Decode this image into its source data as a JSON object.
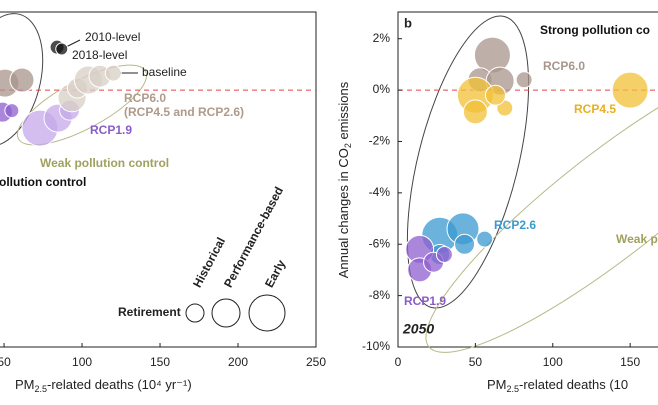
{
  "chart_data": [
    {
      "type": "scatter",
      "x_label": [
        "PM",
        "2.5",
        "-related deaths (10⁴ yr⁻¹)"
      ],
      "xlim": [
        47.4,
        250
      ],
      "ylim": [
        -10,
        3
      ],
      "xticks": [
        50,
        100,
        150,
        200,
        250
      ],
      "zero_line": true,
      "zero_line_color": "#e8414a",
      "series": [
        {
          "color": "#a8968c",
          "x": [
            50.6,
            61.5
          ],
          "values": [
            0.27,
            0.39
          ],
          "sizes": [
            14,
            12
          ]
        },
        {
          "color": "#8f5fcf",
          "x": [
            49,
            55
          ],
          "values": [
            -0.86,
            -0.8
          ],
          "sizes": [
            10,
            7
          ]
        },
        {
          "color": "#c4a8ea",
          "x": [
            73,
            84.6,
            92
          ],
          "values": [
            -1.48,
            -1.09,
            -0.78
          ],
          "sizes": [
            18,
            14,
            10
          ]
        },
        {
          "color": "#d8cfc6",
          "x": [
            93.6,
            97,
            104,
            111.5,
            120
          ],
          "values": [
            -0.3,
            0.08,
            0.39,
            0.54,
            0.66
          ],
          "sizes": [
            14,
            10,
            14,
            11,
            8
          ]
        },
        {
          "color": "#111111",
          "x": [
            84,
            87
          ],
          "values": [
            1.67,
            1.6
          ],
          "sizes": [
            7,
            6
          ]
        }
      ],
      "annotations": [
        {
          "text": "2010-level",
          "color": "#222222"
        },
        {
          "text": "2018-level",
          "color": "#222222"
        },
        {
          "text": "baseline",
          "color": "#222222"
        },
        {
          "text": "RCP6.0",
          "color": "#b09a8a"
        },
        {
          "text": "(RCP4.5 and RCP2.6)",
          "color": "#b09a8a"
        },
        {
          "text": "RCP1.9",
          "color": "#8a5cc9"
        },
        {
          "text": "Weak pollution control",
          "color": "#a0a060"
        },
        {
          "text": "ollution control",
          "color": "#111111"
        }
      ],
      "size_legend": {
        "title": "Retirement",
        "labels": [
          "Historical",
          "Performance-based",
          "Early"
        ],
        "sizes": [
          9,
          14,
          18
        ]
      }
    },
    {
      "type": "scatter",
      "panel_label": "b",
      "year_label": "2050",
      "y_label": [
        "Annual changes in CO",
        "2",
        " emissions"
      ],
      "x_label": [
        "PM",
        "2.5",
        "-related deaths (10"
      ],
      "xlim": [
        0,
        168
      ],
      "ylim": [
        -10,
        3
      ],
      "xticks": [
        0,
        50,
        100,
        150
      ],
      "yticks": [
        {
          "value": 2,
          "label": "2%"
        },
        {
          "value": 0,
          "label": "0%"
        },
        {
          "value": -2,
          "label": "-2%"
        },
        {
          "value": -4,
          "label": "-4%"
        },
        {
          "value": -6,
          "label": "-6%"
        },
        {
          "value": -8,
          "label": "-8%"
        },
        {
          "value": -10,
          "label": "-10%"
        }
      ],
      "zero_line": true,
      "zero_line_color": "#e8414a",
      "series": [
        {
          "color": "#a8968c",
          "x": [
            61,
            53,
            66,
            81.5
          ],
          "values": [
            1.36,
            0.4,
            0.35,
            0.4
          ],
          "sizes": [
            18,
            12,
            14,
            8
          ]
        },
        {
          "color": "#f2c035",
          "x": [
            50,
            50,
            69,
            63,
            150
          ],
          "values": [
            -0.2,
            -0.85,
            -0.7,
            -0.2,
            0
          ],
          "sizes": [
            18,
            12,
            8,
            10,
            18
          ]
        },
        {
          "color": "#3a9ad0",
          "x": [
            27,
            42,
            43,
            56,
            27
          ],
          "values": [
            -5.65,
            -5.4,
            -6.0,
            -5.8,
            -6.4
          ],
          "sizes": [
            18,
            16,
            10,
            8,
            10
          ]
        },
        {
          "color": "#8f5fcf",
          "x": [
            14,
            14,
            23,
            30
          ],
          "values": [
            -6.2,
            -7.0,
            -6.7,
            -6.4
          ],
          "sizes": [
            14,
            12,
            10,
            8
          ]
        }
      ],
      "annotations": [
        {
          "text": "Strong pollution co",
          "color": "#111111"
        },
        {
          "text": "RCP6.0",
          "color": "#a8968c"
        },
        {
          "text": "RCP4.5",
          "color": "#e6b020"
        },
        {
          "text": "RCP2.6",
          "color": "#3a9ad0"
        },
        {
          "text": "Weak p",
          "color": "#a0a060"
        },
        {
          "text": "RCP1.9",
          "color": "#8a5cc9"
        }
      ]
    }
  ]
}
